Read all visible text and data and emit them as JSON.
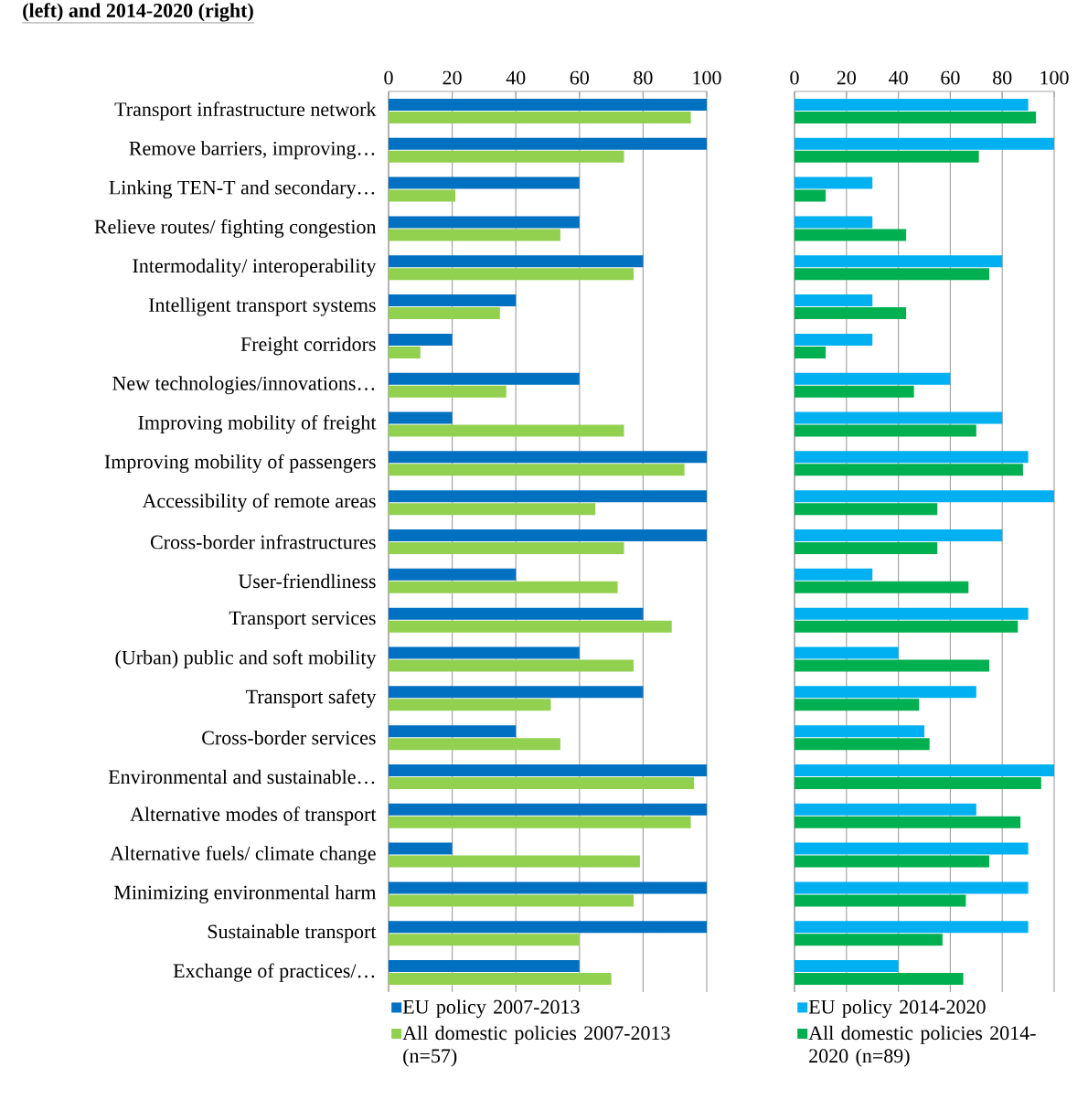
{
  "chart_data": [
    {
      "type": "bar",
      "orientation": "horizontal",
      "title": "(left) and 2014-2020 (right)",
      "categories": [
        "Transport infrastructure network",
        "Remove barriers, improving…",
        "Linking TEN-T and secondary…",
        "Relieve routes/ fighting congestion",
        "Intermodality/ interoperability",
        "Intelligent transport systems",
        "Freight corridors",
        "New technologies/innovations…",
        "Improving mobility of freight",
        "Improving mobility of passengers",
        "Accessibility of remote areas",
        "Cross-border infrastructures",
        "User-friendliness",
        "Transport services",
        "(Urban) public and soft mobility",
        "Transport safety",
        "Cross-border services",
        "Environmental and sustainable…",
        "Alternative modes of transport",
        "Alternative fuels/ climate change",
        "Minimizing environmental harm",
        "Sustainable transport",
        "Exchange of practices/…"
      ],
      "series": [
        {
          "name": "EU policy 2007-2013",
          "color": "#0070c0",
          "values": [
            100,
            100,
            60,
            60,
            80,
            40,
            20,
            60,
            20,
            100,
            100,
            100,
            40,
            80,
            60,
            80,
            40,
            100,
            100,
            20,
            100,
            100,
            60
          ]
        },
        {
          "name": "All domestic policies 2007-2013 (n=57)",
          "color": "#92d050",
          "values": [
            95,
            74,
            21,
            54,
            77,
            35,
            10,
            37,
            74,
            93,
            65,
            74,
            72,
            89,
            77,
            51,
            54,
            96,
            95,
            79,
            77,
            60,
            70
          ]
        }
      ],
      "xlim": [
        0,
        100
      ],
      "xticks": [
        0,
        20,
        40,
        60,
        80,
        100
      ],
      "grid": "x",
      "legend": "bottom"
    },
    {
      "type": "bar",
      "orientation": "horizontal",
      "categories": [
        null,
        null,
        null,
        null,
        null,
        null,
        null,
        null,
        null,
        null,
        null,
        null,
        null,
        null,
        null,
        null,
        null,
        null,
        null,
        null,
        null,
        null,
        null
      ],
      "series": [
        {
          "name": "EU policy 2014-2020",
          "color": "#00b0f0",
          "values": [
            90,
            100,
            30,
            30,
            80,
            30,
            30,
            60,
            80,
            90,
            100,
            80,
            30,
            90,
            40,
            70,
            50,
            100,
            70,
            90,
            90,
            90,
            40
          ]
        },
        {
          "name": "All domestic policies 2014-2020 (n=89)",
          "color": "#00b050",
          "values": [
            93,
            71,
            12,
            43,
            75,
            43,
            12,
            46,
            70,
            88,
            55,
            55,
            67,
            86,
            75,
            48,
            52,
            95,
            87,
            75,
            66,
            57,
            65
          ]
        }
      ],
      "xlim": [
        0,
        100
      ],
      "xticks": [
        0,
        20,
        40,
        60,
        80,
        100
      ],
      "grid": "x",
      "legend": "bottom",
      "tick_labels": "x"
    }
  ]
}
